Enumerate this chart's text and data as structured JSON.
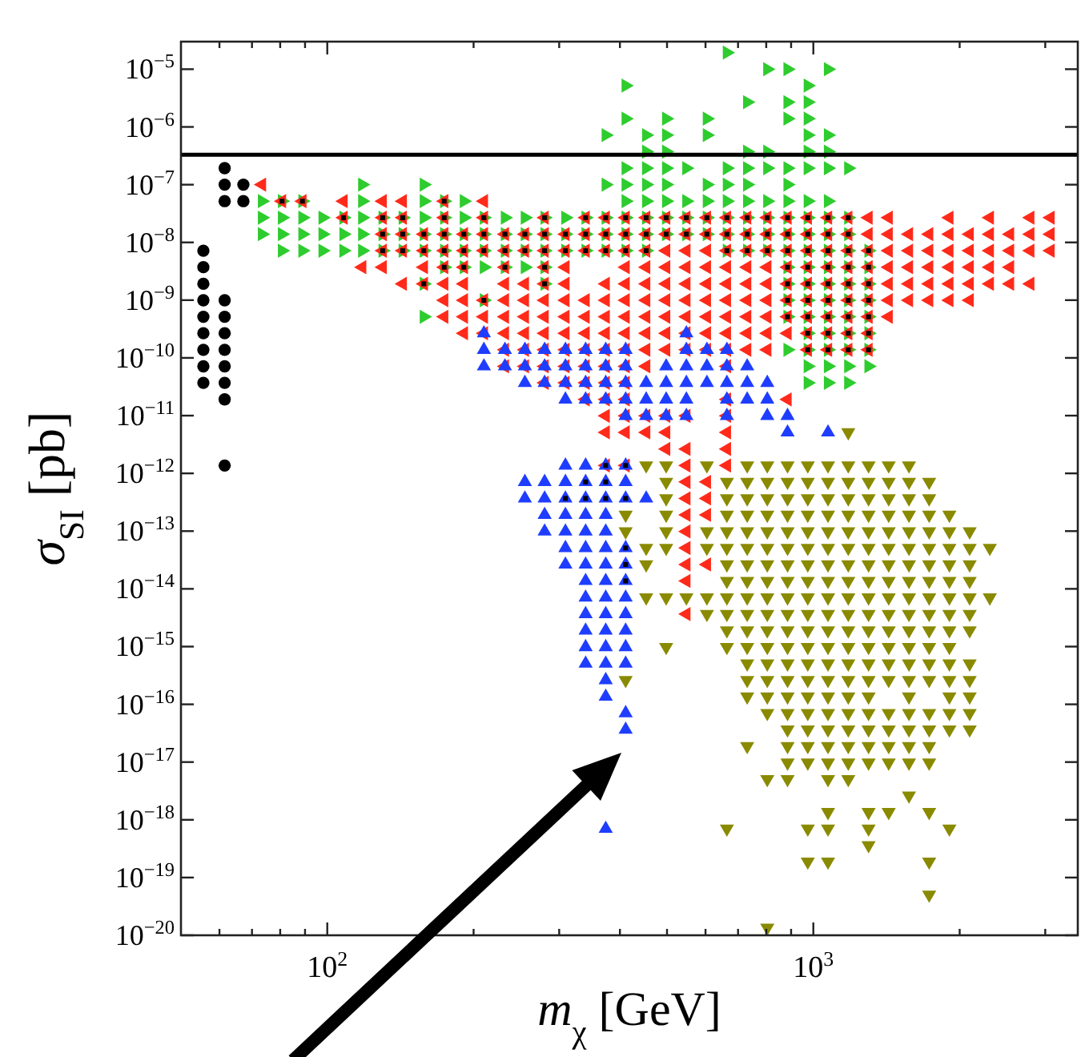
{
  "chart_data": {
    "type": "scatter",
    "xlabel": "m$_{χ}$ [GeV]",
    "ylabel": "σ$_{SI}$ [pb]",
    "log": "xy",
    "xlim": [
      50,
      3500
    ],
    "ylim": [
      1e-20,
      3e-05
    ],
    "xticks": [
      {
        "value": 60,
        "label": null
      },
      {
        "value": 70,
        "label": null
      },
      {
        "value": 80,
        "label": null
      },
      {
        "value": 90,
        "label": null
      },
      {
        "value": 100,
        "label": "10$^{2}$"
      },
      {
        "value": 200,
        "label": null
      },
      {
        "value": 300,
        "label": null
      },
      {
        "value": 400,
        "label": null
      },
      {
        "value": 500,
        "label": null
      },
      {
        "value": 600,
        "label": null
      },
      {
        "value": 700,
        "label": null
      },
      {
        "value": 800,
        "label": null
      },
      {
        "value": 900,
        "label": null
      },
      {
        "value": 1000,
        "label": "10$^{3}$"
      },
      {
        "value": 2000,
        "label": null
      },
      {
        "value": 3000,
        "label": null
      }
    ],
    "yticks": [
      {
        "value": 1e-05,
        "label": "10$^{−5}$"
      },
      {
        "value": 1e-06,
        "label": "10$^{−6}$"
      },
      {
        "value": 1e-07,
        "label": "10$^{−7}$"
      },
      {
        "value": 1e-08,
        "label": "10$^{−8}$"
      },
      {
        "value": 1e-09,
        "label": "10$^{−9}$"
      },
      {
        "value": 1e-10,
        "label": "10$^{−10}$"
      },
      {
        "value": 1e-11,
        "label": "10$^{−11}$"
      },
      {
        "value": 1e-12,
        "label": "10$^{−12}$"
      },
      {
        "value": 1e-13,
        "label": "10$^{−13}$"
      },
      {
        "value": 1e-14,
        "label": "10$^{−14}$"
      },
      {
        "value": 1e-15,
        "label": "10$^{−15}$"
      },
      {
        "value": 1e-16,
        "label": "10$^{−16}$"
      },
      {
        "value": 1e-17,
        "label": "10$^{−17}$"
      },
      {
        "value": 1e-18,
        "label": "10$^{−18}$"
      },
      {
        "value": 1e-19,
        "label": "10$^{−19}$"
      },
      {
        "value": 1e-20,
        "label": "10$^{−20}$"
      }
    ],
    "ref_lines": [
      {
        "axis": "y",
        "value": 3.3e-07,
        "color": "#000000"
      }
    ],
    "series": [
      {
        "color": "#2ecc2e",
        "marker": "triangle-right",
        "x": [
          664,
          804,
          885,
          1072,
          411,
          974,
          731,
          885,
          974,
          411,
          498,
          604,
          885,
          974,
          374,
          453,
          498,
          604,
          974,
          1072,
          453,
          498,
          731,
          804,
          974,
          1072,
          411,
          453,
          498,
          548,
          664,
          731,
          804,
          885,
          974,
          1072,
          1180,
          118,
          158,
          374,
          411,
          453,
          498,
          604,
          664,
          731,
          885,
          73.4,
          80.7,
          88.9,
          118,
          158,
          174,
          191,
          411,
          453,
          498,
          548,
          604,
          664,
          731,
          804,
          885,
          974,
          1072,
          73.4,
          80.7,
          88.9,
          97.8,
          108,
          118,
          130,
          143,
          158,
          174,
          191,
          210,
          232,
          255,
          280,
          309,
          340,
          374,
          411,
          453,
          498,
          548,
          604,
          664,
          731,
          804,
          885,
          974,
          1072,
          1180,
          73.4,
          80.7,
          88.9,
          97.8,
          108,
          118,
          130,
          143,
          158,
          174,
          191,
          210,
          232,
          255,
          280,
          309,
          340,
          374,
          411,
          453,
          498,
          548,
          604,
          664,
          731,
          804,
          885,
          974,
          1072,
          1180,
          80.7,
          88.9,
          97.8,
          108,
          118,
          130,
          143,
          158,
          174,
          191,
          210,
          232,
          255,
          280,
          309,
          340,
          374,
          411,
          453,
          664,
          731,
          804,
          885,
          974,
          1072,
          1180,
          1299,
          174,
          191,
          210,
          232,
          255,
          280,
          885,
          974,
          1072,
          1180,
          1299,
          158,
          280,
          885,
          974,
          1072,
          1180,
          1299,
          210,
          885,
          974,
          1072,
          1180,
          1299,
          158,
          885,
          974,
          1072,
          1180,
          1299,
          974,
          1072,
          1180,
          1299,
          885,
          974,
          1072,
          1180,
          1299,
          974,
          1072,
          1180,
          1299,
          974,
          1072,
          1180
        ],
        "values": [
          1.94e-05,
          1e-05,
          1e-05,
          1e-05,
          5.2e-06,
          5.2e-06,
          2.69e-06,
          2.69e-06,
          2.69e-06,
          1.39e-06,
          1.39e-06,
          1.39e-06,
          1.39e-06,
          1.39e-06,
          7.21e-07,
          7.21e-07,
          7.21e-07,
          7.21e-07,
          7.21e-07,
          7.21e-07,
          3.73e-07,
          3.73e-07,
          3.73e-07,
          3.73e-07,
          3.73e-07,
          3.73e-07,
          1.93e-07,
          1.93e-07,
          1.93e-07,
          1.93e-07,
          1.93e-07,
          1.93e-07,
          1.93e-07,
          1.93e-07,
          1.93e-07,
          1.93e-07,
          1.93e-07,
          1e-07,
          1e-07,
          1e-07,
          1e-07,
          1e-07,
          1e-07,
          1e-07,
          1e-07,
          1e-07,
          1e-07,
          5.18e-08,
          5.18e-08,
          5.18e-08,
          5.18e-08,
          5.18e-08,
          5.18e-08,
          5.18e-08,
          5.18e-08,
          5.18e-08,
          5.18e-08,
          5.18e-08,
          5.18e-08,
          5.18e-08,
          5.18e-08,
          5.18e-08,
          5.18e-08,
          5.18e-08,
          5.18e-08,
          2.68e-08,
          2.68e-08,
          2.68e-08,
          2.68e-08,
          2.68e-08,
          2.68e-08,
          2.68e-08,
          2.68e-08,
          2.68e-08,
          2.68e-08,
          2.68e-08,
          2.68e-08,
          2.68e-08,
          2.68e-08,
          2.68e-08,
          2.68e-08,
          2.68e-08,
          2.68e-08,
          2.68e-08,
          2.68e-08,
          2.68e-08,
          2.68e-08,
          2.68e-08,
          2.68e-08,
          2.68e-08,
          2.68e-08,
          2.68e-08,
          2.68e-08,
          2.68e-08,
          2.68e-08,
          1.39e-08,
          1.39e-08,
          1.39e-08,
          1.39e-08,
          1.39e-08,
          1.39e-08,
          1.39e-08,
          1.39e-08,
          1.39e-08,
          1.39e-08,
          1.39e-08,
          1.39e-08,
          1.39e-08,
          1.39e-08,
          1.39e-08,
          1.39e-08,
          1.39e-08,
          1.39e-08,
          1.39e-08,
          1.39e-08,
          1.39e-08,
          1.39e-08,
          1.39e-08,
          1.39e-08,
          1.39e-08,
          1.39e-08,
          1.39e-08,
          1.39e-08,
          1.39e-08,
          1.39e-08,
          7.18e-09,
          7.18e-09,
          7.18e-09,
          7.18e-09,
          7.18e-09,
          7.18e-09,
          7.18e-09,
          7.18e-09,
          7.18e-09,
          7.18e-09,
          7.18e-09,
          7.18e-09,
          7.18e-09,
          7.18e-09,
          7.18e-09,
          7.18e-09,
          7.18e-09,
          7.18e-09,
          7.18e-09,
          7.18e-09,
          7.18e-09,
          7.18e-09,
          7.18e-09,
          7.18e-09,
          7.18e-09,
          7.18e-09,
          7.18e-09,
          3.72e-09,
          3.72e-09,
          3.72e-09,
          3.72e-09,
          3.72e-09,
          3.72e-09,
          3.72e-09,
          3.72e-09,
          3.72e-09,
          3.72e-09,
          3.72e-09,
          1.92e-09,
          1.92e-09,
          1.92e-09,
          1.92e-09,
          1.92e-09,
          1.92e-09,
          1.92e-09,
          9.95e-10,
          9.95e-10,
          9.95e-10,
          9.95e-10,
          9.95e-10,
          9.95e-10,
          5.15e-10,
          5.15e-10,
          5.15e-10,
          5.15e-10,
          5.15e-10,
          5.15e-10,
          2.67e-10,
          2.67e-10,
          2.67e-10,
          2.67e-10,
          1.38e-10,
          1.38e-10,
          1.38e-10,
          1.38e-10,
          1.38e-10,
          7.14e-11,
          7.14e-11,
          7.14e-11,
          7.14e-11,
          3.7e-11,
          3.7e-11,
          3.7e-11
        ]
      },
      {
        "color": "#ff2a1a",
        "marker": "triangle-left",
        "x": [
          73.4,
          80.7,
          88.9,
          108,
          130,
          143,
          174,
          210,
          108,
          130,
          143,
          174,
          210,
          280,
          340,
          374,
          411,
          453,
          498,
          548,
          604,
          664,
          731,
          804,
          885,
          974,
          1072,
          1180,
          1299,
          1429,
          1905,
          2307,
          2795,
          3076,
          130,
          143,
          158,
          174,
          191,
          210,
          232,
          255,
          280,
          309,
          340,
          374,
          411,
          453,
          498,
          548,
          604,
          664,
          731,
          804,
          885,
          974,
          1072,
          1180,
          1299,
          1429,
          1573,
          1731,
          1905,
          2097,
          2307,
          2539,
          2795,
          3076,
          130,
          143,
          158,
          174,
          191,
          210,
          232,
          255,
          280,
          309,
          340,
          374,
          411,
          453,
          498,
          548,
          604,
          664,
          731,
          804,
          885,
          974,
          1072,
          1180,
          1299,
          1429,
          1573,
          1731,
          1905,
          2097,
          2307,
          2539,
          2795,
          3076,
          118,
          130,
          158,
          174,
          191,
          232,
          280,
          309,
          411,
          453,
          498,
          548,
          604,
          664,
          731,
          804,
          885,
          974,
          1072,
          1180,
          1299,
          1429,
          1573,
          1731,
          1905,
          2097,
          2307,
          2539,
          143,
          158,
          174,
          191,
          232,
          255,
          280,
          309,
          374,
          411,
          453,
          498,
          548,
          604,
          664,
          731,
          804,
          885,
          974,
          1072,
          1180,
          1299,
          1429,
          1573,
          1731,
          1905,
          2097,
          2307,
          2539,
          2795,
          174,
          191,
          210,
          232,
          255,
          280,
          309,
          340,
          374,
          411,
          453,
          498,
          548,
          604,
          664,
          731,
          804,
          885,
          974,
          1072,
          1180,
          1299,
          1429,
          1573,
          1731,
          1905,
          2097,
          174,
          191,
          210,
          232,
          255,
          280,
          309,
          340,
          374,
          411,
          453,
          498,
          548,
          604,
          664,
          731,
          804,
          885,
          974,
          1072,
          1180,
          1299,
          1429,
          191,
          210,
          232,
          255,
          280,
          309,
          340,
          374,
          411,
          453,
          498,
          548,
          604,
          664,
          731,
          804,
          885,
          974,
          1072,
          1180,
          1299,
          232,
          255,
          280,
          309,
          340,
          374,
          411,
          453,
          498,
          548,
          604,
          664,
          731,
          804,
          974,
          1072,
          1180,
          1299,
          232,
          255,
          280,
          309,
          340,
          374,
          411,
          453,
          664,
          280,
          309,
          340,
          374,
          411,
          340,
          374,
          411,
          664,
          885,
          374,
          411,
          453,
          498,
          548,
          664,
          374,
          411,
          453,
          498,
          664,
          498,
          548,
          664,
          374,
          411,
          548,
          664,
          548,
          604,
          548,
          604,
          548,
          604,
          548,
          548,
          548,
          604,
          548,
          548
        ],
        "values": [
          1e-07,
          5.18e-08,
          5.18e-08,
          5.18e-08,
          5.18e-08,
          5.18e-08,
          5.18e-08,
          5.18e-08,
          2.68e-08,
          2.68e-08,
          2.68e-08,
          2.68e-08,
          2.68e-08,
          2.68e-08,
          2.68e-08,
          2.68e-08,
          2.68e-08,
          2.68e-08,
          2.68e-08,
          2.68e-08,
          2.68e-08,
          2.68e-08,
          2.68e-08,
          2.68e-08,
          2.68e-08,
          2.68e-08,
          2.68e-08,
          2.68e-08,
          2.68e-08,
          2.68e-08,
          2.68e-08,
          2.68e-08,
          2.68e-08,
          2.68e-08,
          1.39e-08,
          1.39e-08,
          1.39e-08,
          1.39e-08,
          1.39e-08,
          1.39e-08,
          1.39e-08,
          1.39e-08,
          1.39e-08,
          1.39e-08,
          1.39e-08,
          1.39e-08,
          1.39e-08,
          1.39e-08,
          1.39e-08,
          1.39e-08,
          1.39e-08,
          1.39e-08,
          1.39e-08,
          1.39e-08,
          1.39e-08,
          1.39e-08,
          1.39e-08,
          1.39e-08,
          1.39e-08,
          1.39e-08,
          1.39e-08,
          1.39e-08,
          1.39e-08,
          1.39e-08,
          1.39e-08,
          1.39e-08,
          1.39e-08,
          1.39e-08,
          7.18e-09,
          7.18e-09,
          7.18e-09,
          7.18e-09,
          7.18e-09,
          7.18e-09,
          7.18e-09,
          7.18e-09,
          7.18e-09,
          7.18e-09,
          7.18e-09,
          7.18e-09,
          7.18e-09,
          7.18e-09,
          7.18e-09,
          7.18e-09,
          7.18e-09,
          7.18e-09,
          7.18e-09,
          7.18e-09,
          7.18e-09,
          7.18e-09,
          7.18e-09,
          7.18e-09,
          7.18e-09,
          7.18e-09,
          7.18e-09,
          7.18e-09,
          7.18e-09,
          7.18e-09,
          7.18e-09,
          7.18e-09,
          7.18e-09,
          7.18e-09,
          3.72e-09,
          3.72e-09,
          3.72e-09,
          3.72e-09,
          3.72e-09,
          3.72e-09,
          3.72e-09,
          3.72e-09,
          3.72e-09,
          3.72e-09,
          3.72e-09,
          3.72e-09,
          3.72e-09,
          3.72e-09,
          3.72e-09,
          3.72e-09,
          3.72e-09,
          3.72e-09,
          3.72e-09,
          3.72e-09,
          3.72e-09,
          3.72e-09,
          3.72e-09,
          3.72e-09,
          3.72e-09,
          3.72e-09,
          3.72e-09,
          3.72e-09,
          1.92e-09,
          1.92e-09,
          1.92e-09,
          1.92e-09,
          1.92e-09,
          1.92e-09,
          1.92e-09,
          1.92e-09,
          1.92e-09,
          1.92e-09,
          1.92e-09,
          1.92e-09,
          1.92e-09,
          1.92e-09,
          1.92e-09,
          1.92e-09,
          1.92e-09,
          1.92e-09,
          1.92e-09,
          1.92e-09,
          1.92e-09,
          1.92e-09,
          1.92e-09,
          1.92e-09,
          1.92e-09,
          1.92e-09,
          1.92e-09,
          1.92e-09,
          1.92e-09,
          1.92e-09,
          9.95e-10,
          9.95e-10,
          9.95e-10,
          9.95e-10,
          9.95e-10,
          9.95e-10,
          9.95e-10,
          9.95e-10,
          9.95e-10,
          9.95e-10,
          9.95e-10,
          9.95e-10,
          9.95e-10,
          9.95e-10,
          9.95e-10,
          9.95e-10,
          9.95e-10,
          9.95e-10,
          9.95e-10,
          9.95e-10,
          9.95e-10,
          9.95e-10,
          9.95e-10,
          9.95e-10,
          9.95e-10,
          9.95e-10,
          9.95e-10,
          5.15e-10,
          5.15e-10,
          5.15e-10,
          5.15e-10,
          5.15e-10,
          5.15e-10,
          5.15e-10,
          5.15e-10,
          5.15e-10,
          5.15e-10,
          5.15e-10,
          5.15e-10,
          5.15e-10,
          5.15e-10,
          5.15e-10,
          5.15e-10,
          5.15e-10,
          5.15e-10,
          5.15e-10,
          5.15e-10,
          5.15e-10,
          5.15e-10,
          5.15e-10,
          2.67e-10,
          2.67e-10,
          2.67e-10,
          2.67e-10,
          2.67e-10,
          2.67e-10,
          2.67e-10,
          2.67e-10,
          2.67e-10,
          2.67e-10,
          2.67e-10,
          2.67e-10,
          2.67e-10,
          2.67e-10,
          2.67e-10,
          2.67e-10,
          2.67e-10,
          2.67e-10,
          2.67e-10,
          2.67e-10,
          2.67e-10,
          1.38e-10,
          1.38e-10,
          1.38e-10,
          1.38e-10,
          1.38e-10,
          1.38e-10,
          1.38e-10,
          1.38e-10,
          1.38e-10,
          1.38e-10,
          1.38e-10,
          1.38e-10,
          1.38e-10,
          1.38e-10,
          1.38e-10,
          1.38e-10,
          1.38e-10,
          1.38e-10,
          7.14e-11,
          7.14e-11,
          7.14e-11,
          7.14e-11,
          7.14e-11,
          7.14e-11,
          7.14e-11,
          7.14e-11,
          7.14e-11,
          3.7e-11,
          3.7e-11,
          3.7e-11,
          3.7e-11,
          3.7e-11,
          1.91e-11,
          1.91e-11,
          1.91e-11,
          1.91e-11,
          1.91e-11,
          9.91e-12,
          9.91e-12,
          9.91e-12,
          9.91e-12,
          9.91e-12,
          9.91e-12,
          5.13e-12,
          5.13e-12,
          5.13e-12,
          5.13e-12,
          5.13e-12,
          2.65e-12,
          2.65e-12,
          2.65e-12,
          1.37e-12,
          1.37e-12,
          1.37e-12,
          1.37e-12,
          7.11e-13,
          7.11e-13,
          3.68e-13,
          3.68e-13,
          1.91e-13,
          1.91e-13,
          9.86e-14,
          5.11e-14,
          2.64e-14,
          2.64e-14,
          1.37e-14,
          3.66e-15
        ]
      },
      {
        "color": "#1f3dff",
        "marker": "triangle-up",
        "x": [
          210,
          548,
          210,
          232,
          255,
          280,
          309,
          340,
          374,
          411,
          548,
          604,
          664,
          210,
          232,
          255,
          280,
          309,
          340,
          374,
          411,
          498,
          548,
          604,
          664,
          731,
          255,
          280,
          309,
          340,
          374,
          411,
          453,
          498,
          548,
          604,
          664,
          731,
          804,
          309,
          340,
          374,
          411,
          453,
          498,
          548,
          664,
          731,
          804,
          411,
          453,
          498,
          548,
          664,
          804,
          885,
          885,
          1072,
          309,
          340,
          374,
          411,
          255,
          280,
          309,
          340,
          374,
          411,
          255,
          280,
          309,
          340,
          374,
          411,
          453,
          280,
          309,
          340,
          374,
          280,
          309,
          340,
          374,
          309,
          340,
          374,
          411,
          309,
          340,
          374,
          411,
          340,
          374,
          411,
          340,
          374,
          411,
          340,
          374,
          411,
          340,
          374,
          411,
          340,
          374,
          411,
          340,
          374,
          411,
          374,
          374,
          411,
          411,
          374
        ],
        "values": [
          2.67e-10,
          2.67e-10,
          1.38e-10,
          1.38e-10,
          1.38e-10,
          1.38e-10,
          1.38e-10,
          1.38e-10,
          1.38e-10,
          1.38e-10,
          1.38e-10,
          1.38e-10,
          1.38e-10,
          7.14e-11,
          7.14e-11,
          7.14e-11,
          7.14e-11,
          7.14e-11,
          7.14e-11,
          7.14e-11,
          7.14e-11,
          7.14e-11,
          7.14e-11,
          7.14e-11,
          7.14e-11,
          7.14e-11,
          3.7e-11,
          3.7e-11,
          3.7e-11,
          3.7e-11,
          3.7e-11,
          3.7e-11,
          3.7e-11,
          3.7e-11,
          3.7e-11,
          3.7e-11,
          3.7e-11,
          3.7e-11,
          3.7e-11,
          1.91e-11,
          1.91e-11,
          1.91e-11,
          1.91e-11,
          1.91e-11,
          1.91e-11,
          1.91e-11,
          1.91e-11,
          1.91e-11,
          1.91e-11,
          9.91e-12,
          9.91e-12,
          9.91e-12,
          9.91e-12,
          9.91e-12,
          9.91e-12,
          9.91e-12,
          5.13e-12,
          5.13e-12,
          1.37e-12,
          1.37e-12,
          1.37e-12,
          1.37e-12,
          7.11e-13,
          7.11e-13,
          7.11e-13,
          7.11e-13,
          7.11e-13,
          7.11e-13,
          3.68e-13,
          3.68e-13,
          3.68e-13,
          3.68e-13,
          3.68e-13,
          3.68e-13,
          3.68e-13,
          1.91e-13,
          1.91e-13,
          1.91e-13,
          1.91e-13,
          9.86e-14,
          9.86e-14,
          9.86e-14,
          9.86e-14,
          5.11e-14,
          5.11e-14,
          5.11e-14,
          5.11e-14,
          2.64e-14,
          2.64e-14,
          2.64e-14,
          2.64e-14,
          1.37e-14,
          1.37e-14,
          1.37e-14,
          7.08e-15,
          7.08e-15,
          7.08e-15,
          3.66e-15,
          3.66e-15,
          3.66e-15,
          1.9e-15,
          1.9e-15,
          1.9e-15,
          9.82e-16,
          9.82e-16,
          9.82e-16,
          5.08e-16,
          5.08e-16,
          5.08e-16,
          2.63e-16,
          1.36e-16,
          7.05e-17,
          3.65e-17,
          7.02e-19
        ]
      },
      {
        "color": "#8a8a00",
        "marker": "triangle-down",
        "x": [
          1180,
          453,
          498,
          604,
          731,
          804,
          885,
          974,
          1072,
          1180,
          1299,
          1429,
          1573,
          498,
          664,
          731,
          804,
          885,
          974,
          1072,
          1180,
          1299,
          1429,
          1573,
          1731,
          498,
          664,
          731,
          804,
          885,
          974,
          1072,
          1180,
          1299,
          1429,
          1573,
          1731,
          411,
          498,
          664,
          731,
          804,
          885,
          974,
          1072,
          1180,
          1299,
          1429,
          1573,
          1731,
          1905,
          411,
          498,
          604,
          664,
          731,
          804,
          885,
          974,
          1072,
          1180,
          1299,
          1429,
          1573,
          1731,
          1905,
          2097,
          453,
          498,
          604,
          664,
          731,
          804,
          885,
          974,
          1072,
          1180,
          1299,
          1429,
          1573,
          1731,
          1905,
          2097,
          2307,
          453,
          664,
          731,
          804,
          885,
          974,
          1072,
          1180,
          1299,
          1429,
          1573,
          1731,
          1905,
          2097,
          664,
          731,
          804,
          885,
          974,
          1072,
          1180,
          1299,
          1429,
          1573,
          1731,
          1905,
          2097,
          453,
          498,
          548,
          604,
          664,
          731,
          804,
          885,
          974,
          1072,
          1180,
          1299,
          1429,
          1573,
          1731,
          1905,
          2097,
          2307,
          604,
          664,
          731,
          804,
          885,
          974,
          1072,
          1180,
          1299,
          1429,
          1573,
          1731,
          1905,
          2097,
          664,
          731,
          804,
          885,
          974,
          1072,
          1180,
          1299,
          1429,
          1573,
          1731,
          1905,
          2097,
          498,
          664,
          731,
          804,
          885,
          974,
          1072,
          1180,
          1299,
          1429,
          1573,
          1731,
          1905,
          731,
          804,
          885,
          974,
          1072,
          1180,
          1299,
          1429,
          1573,
          1731,
          1905,
          2097,
          411,
          731,
          804,
          885,
          974,
          1072,
          1180,
          1299,
          1429,
          1573,
          1731,
          1905,
          2097,
          731,
          804,
          885,
          974,
          1072,
          1180,
          1299,
          1573,
          1905,
          2097,
          804,
          885,
          974,
          1072,
          1180,
          1299,
          1429,
          1573,
          1731,
          1905,
          2097,
          885,
          974,
          1072,
          1180,
          1299,
          1429,
          1573,
          1731,
          1905,
          2097,
          731,
          885,
          974,
          1072,
          1180,
          1299,
          1429,
          1573,
          1731,
          885,
          974,
          1072,
          1180,
          1299,
          1429,
          1573,
          1731,
          804,
          885,
          1072,
          1180,
          1573,
          1072,
          1299,
          1429,
          1731,
          664,
          974,
          1072,
          1299,
          1905,
          1299,
          974,
          1072,
          1731,
          1731,
          804
        ],
        "values": [
          5.13e-12,
          1.37e-12,
          1.37e-12,
          1.37e-12,
          1.37e-12,
          1.37e-12,
          1.37e-12,
          1.37e-12,
          1.37e-12,
          1.37e-12,
          1.37e-12,
          1.37e-12,
          1.37e-12,
          7.11e-13,
          7.11e-13,
          7.11e-13,
          7.11e-13,
          7.11e-13,
          7.11e-13,
          7.11e-13,
          7.11e-13,
          7.11e-13,
          7.11e-13,
          7.11e-13,
          7.11e-13,
          3.68e-13,
          3.68e-13,
          3.68e-13,
          3.68e-13,
          3.68e-13,
          3.68e-13,
          3.68e-13,
          3.68e-13,
          3.68e-13,
          3.68e-13,
          3.68e-13,
          3.68e-13,
          1.91e-13,
          1.91e-13,
          1.91e-13,
          1.91e-13,
          1.91e-13,
          1.91e-13,
          1.91e-13,
          1.91e-13,
          1.91e-13,
          1.91e-13,
          1.91e-13,
          1.91e-13,
          1.91e-13,
          1.91e-13,
          9.86e-14,
          9.86e-14,
          9.86e-14,
          9.86e-14,
          9.86e-14,
          9.86e-14,
          9.86e-14,
          9.86e-14,
          9.86e-14,
          9.86e-14,
          9.86e-14,
          9.86e-14,
          9.86e-14,
          9.86e-14,
          9.86e-14,
          9.86e-14,
          5.11e-14,
          5.11e-14,
          5.11e-14,
          5.11e-14,
          5.11e-14,
          5.11e-14,
          5.11e-14,
          5.11e-14,
          5.11e-14,
          5.11e-14,
          5.11e-14,
          5.11e-14,
          5.11e-14,
          5.11e-14,
          5.11e-14,
          5.11e-14,
          5.11e-14,
          2.64e-14,
          2.64e-14,
          2.64e-14,
          2.64e-14,
          2.64e-14,
          2.64e-14,
          2.64e-14,
          2.64e-14,
          2.64e-14,
          2.64e-14,
          2.64e-14,
          2.64e-14,
          2.64e-14,
          2.64e-14,
          1.37e-14,
          1.37e-14,
          1.37e-14,
          1.37e-14,
          1.37e-14,
          1.37e-14,
          1.37e-14,
          1.37e-14,
          1.37e-14,
          1.37e-14,
          1.37e-14,
          1.37e-14,
          1.37e-14,
          7.08e-15,
          7.08e-15,
          7.08e-15,
          7.08e-15,
          7.08e-15,
          7.08e-15,
          7.08e-15,
          7.08e-15,
          7.08e-15,
          7.08e-15,
          7.08e-15,
          7.08e-15,
          7.08e-15,
          7.08e-15,
          7.08e-15,
          7.08e-15,
          7.08e-15,
          7.08e-15,
          3.66e-15,
          3.66e-15,
          3.66e-15,
          3.66e-15,
          3.66e-15,
          3.66e-15,
          3.66e-15,
          3.66e-15,
          3.66e-15,
          3.66e-15,
          3.66e-15,
          3.66e-15,
          3.66e-15,
          3.66e-15,
          1.9e-15,
          1.9e-15,
          1.9e-15,
          1.9e-15,
          1.9e-15,
          1.9e-15,
          1.9e-15,
          1.9e-15,
          1.9e-15,
          1.9e-15,
          1.9e-15,
          1.9e-15,
          1.9e-15,
          9.82e-16,
          9.82e-16,
          9.82e-16,
          9.82e-16,
          9.82e-16,
          9.82e-16,
          9.82e-16,
          9.82e-16,
          9.82e-16,
          9.82e-16,
          9.82e-16,
          9.82e-16,
          9.82e-16,
          5.08e-16,
          5.08e-16,
          5.08e-16,
          5.08e-16,
          5.08e-16,
          5.08e-16,
          5.08e-16,
          5.08e-16,
          5.08e-16,
          5.08e-16,
          5.08e-16,
          5.08e-16,
          2.63e-16,
          2.63e-16,
          2.63e-16,
          2.63e-16,
          2.63e-16,
          2.63e-16,
          2.63e-16,
          2.63e-16,
          2.63e-16,
          2.63e-16,
          2.63e-16,
          2.63e-16,
          2.63e-16,
          1.36e-16,
          1.36e-16,
          1.36e-16,
          1.36e-16,
          1.36e-16,
          1.36e-16,
          1.36e-16,
          1.36e-16,
          1.36e-16,
          1.36e-16,
          7.05e-17,
          7.05e-17,
          7.05e-17,
          7.05e-17,
          7.05e-17,
          7.05e-17,
          7.05e-17,
          7.05e-17,
          7.05e-17,
          7.05e-17,
          7.05e-17,
          3.65e-17,
          3.65e-17,
          3.65e-17,
          3.65e-17,
          3.65e-17,
          3.65e-17,
          3.65e-17,
          3.65e-17,
          3.65e-17,
          3.65e-17,
          1.89e-17,
          1.89e-17,
          1.89e-17,
          1.89e-17,
          1.89e-17,
          1.89e-17,
          1.89e-17,
          1.89e-17,
          1.89e-17,
          9.77e-18,
          9.77e-18,
          9.77e-18,
          9.77e-18,
          9.77e-18,
          9.77e-18,
          9.77e-18,
          9.77e-18,
          5.06e-18,
          5.06e-18,
          5.06e-18,
          5.06e-18,
          2.62e-18,
          1.36e-18,
          1.36e-18,
          1.36e-18,
          1.36e-18,
          7.02e-19,
          7.02e-19,
          7.02e-19,
          7.02e-19,
          7.02e-19,
          3.63e-19,
          1.88e-19,
          1.88e-19,
          1.88e-19,
          5.04e-20,
          1.35e-20
        ]
      },
      {
        "color": "#000000",
        "marker": "circle",
        "x": [
          55.6,
          55.6,
          55.6,
          55.6,
          55.6,
          55.6,
          55.6,
          55.6,
          55.6,
          61.5,
          61.5,
          61.5,
          61.5,
          61.5,
          61.5,
          61.5,
          61.5,
          61.5,
          61.5,
          61.5,
          67.2,
          67.2
        ],
        "values": [
          7.18e-09,
          3.72e-09,
          1.92e-09,
          9.95e-10,
          5.15e-10,
          2.67e-10,
          1.38e-10,
          7.14e-11,
          3.7e-11,
          1.93e-07,
          1e-07,
          5.18e-08,
          9.95e-10,
          5.15e-10,
          2.67e-10,
          1.38e-10,
          7.14e-11,
          3.7e-11,
          1.91e-11,
          1.37e-12,
          1e-07,
          5.18e-08
        ]
      },
      {
        "color": "#000000",
        "marker": "square",
        "x": [
          80.7,
          88.9,
          174,
          108,
          130,
          143,
          174,
          210,
          280,
          340,
          374,
          411,
          453,
          498,
          548,
          604,
          664,
          731,
          804,
          885,
          974,
          1072,
          1180,
          130,
          143,
          158,
          174,
          191,
          210,
          232,
          255,
          280,
          309,
          340,
          374,
          411,
          453,
          498,
          548,
          604,
          664,
          731,
          804,
          885,
          974,
          1072,
          1180,
          130,
          143,
          158,
          174,
          191,
          210,
          232,
          255,
          280,
          309,
          340,
          374,
          411,
          453,
          664,
          731,
          804,
          885,
          974,
          1072,
          1180,
          1299,
          174,
          191,
          232,
          280,
          885,
          974,
          1072,
          1180,
          1299,
          158,
          280,
          885,
          974,
          1072,
          1180,
          1299,
          210,
          885,
          974,
          1072,
          1180,
          1299,
          885,
          974,
          1072,
          1180,
          1299,
          974,
          1072,
          1180,
          1299,
          974,
          1072,
          1180,
          1299,
          374,
          411,
          340,
          374,
          309,
          340,
          374,
          411,
          411,
          411,
          411
        ],
        "values": [
          5.18e-08,
          5.18e-08,
          5.18e-08,
          2.68e-08,
          2.68e-08,
          2.68e-08,
          2.68e-08,
          2.68e-08,
          2.68e-08,
          2.68e-08,
          2.68e-08,
          2.68e-08,
          2.68e-08,
          2.68e-08,
          2.68e-08,
          2.68e-08,
          2.68e-08,
          2.68e-08,
          2.68e-08,
          2.68e-08,
          2.68e-08,
          2.68e-08,
          2.68e-08,
          1.39e-08,
          1.39e-08,
          1.39e-08,
          1.39e-08,
          1.39e-08,
          1.39e-08,
          1.39e-08,
          1.39e-08,
          1.39e-08,
          1.39e-08,
          1.39e-08,
          1.39e-08,
          1.39e-08,
          1.39e-08,
          1.39e-08,
          1.39e-08,
          1.39e-08,
          1.39e-08,
          1.39e-08,
          1.39e-08,
          1.39e-08,
          1.39e-08,
          1.39e-08,
          1.39e-08,
          7.18e-09,
          7.18e-09,
          7.18e-09,
          7.18e-09,
          7.18e-09,
          7.18e-09,
          7.18e-09,
          7.18e-09,
          7.18e-09,
          7.18e-09,
          7.18e-09,
          7.18e-09,
          7.18e-09,
          7.18e-09,
          7.18e-09,
          7.18e-09,
          7.18e-09,
          7.18e-09,
          7.18e-09,
          7.18e-09,
          7.18e-09,
          7.18e-09,
          3.72e-09,
          3.72e-09,
          3.72e-09,
          3.72e-09,
          3.72e-09,
          3.72e-09,
          3.72e-09,
          3.72e-09,
          3.72e-09,
          1.92e-09,
          1.92e-09,
          1.92e-09,
          1.92e-09,
          1.92e-09,
          1.92e-09,
          1.92e-09,
          9.95e-10,
          9.95e-10,
          9.95e-10,
          9.95e-10,
          9.95e-10,
          9.95e-10,
          5.15e-10,
          5.15e-10,
          5.15e-10,
          5.15e-10,
          5.15e-10,
          2.67e-10,
          2.67e-10,
          2.67e-10,
          2.67e-10,
          1.38e-10,
          1.38e-10,
          1.38e-10,
          1.38e-10,
          1.37e-12,
          1.37e-12,
          7.11e-13,
          7.11e-13,
          3.68e-13,
          3.68e-13,
          3.68e-13,
          3.68e-13,
          5.11e-14,
          2.64e-14,
          1.37e-14
        ]
      }
    ]
  }
}
